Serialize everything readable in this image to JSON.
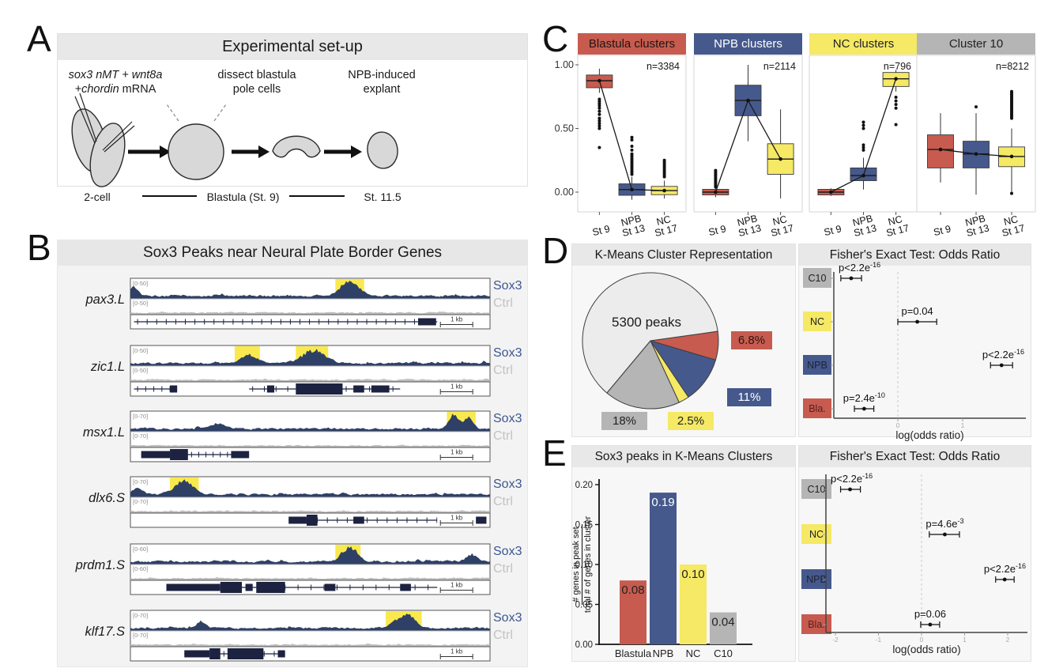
{
  "figure": {
    "panel_labels": [
      "A",
      "B",
      "C",
      "D",
      "E"
    ]
  },
  "colors": {
    "red": "#c75b4f",
    "blue": "#46598c",
    "yellow": "#f5e965",
    "gray": "#b5b5b5",
    "light_slice": "#ececec",
    "header_strip": "#e8e8e8",
    "track_navy": "#2f4066",
    "gene_model": "#1c2240",
    "ctrl_gray": "#bdbdbd",
    "sox3_label": "#3b5793",
    "highlight": "#f9e94e"
  },
  "panel_a": {
    "title": "Experimental set-up",
    "injection_label_line1": "sox3 nMT + wnt8a",
    "injection_label_line2_italic": "+chordin",
    "injection_label_line2_plain": " mRNA",
    "dissect_label_line1": "dissect blastula",
    "dissect_label_line2": "pole cells",
    "explant_label_line1": "NPB-induced",
    "explant_label_line2": "explant",
    "stage_left": "2-cell",
    "stage_mid": "Blastula (St. 9)",
    "stage_right": "St. 11.5"
  },
  "panel_b": {
    "title": "Sox3 Peaks near Neural Plate Border Genes",
    "sox3_label": "Sox3",
    "ctrl_label": "Ctrl",
    "scale_label": "1 kb",
    "tracks": [
      {
        "gene": "pax3.L",
        "range": "[0-50]",
        "seed": 11,
        "highlights": [
          [
            57,
            8
          ]
        ],
        "peaks": [
          [
            61,
            0.8,
            2.6
          ],
          [
            1,
            0.5,
            1.2
          ]
        ],
        "lines": [
          [
            1,
            86
          ]
        ],
        "ticks": [
          [
            2,
            79,
            30
          ]
        ],
        "boxes": [
          [
            80,
            5,
            2
          ]
        ]
      },
      {
        "gene": "zic1.L",
        "range": "[0-50]",
        "seed": 23,
        "highlights": [
          [
            29,
            7
          ],
          [
            46,
            9
          ]
        ],
        "peaks": [
          [
            33,
            0.45,
            2.0
          ],
          [
            51,
            0.7,
            3.0
          ]
        ],
        "lines": [
          [
            1,
            13
          ],
          [
            33,
            75
          ]
        ],
        "ticks": [
          [
            2,
            11,
            5
          ],
          [
            34,
            73,
            13
          ]
        ],
        "boxes": [
          [
            11,
            2,
            2
          ],
          [
            38,
            2,
            2
          ],
          [
            46,
            13,
            3
          ],
          [
            62,
            3,
            2
          ],
          [
            67,
            5,
            2
          ]
        ]
      },
      {
        "gene": "msx1.L",
        "range": "[0-70]",
        "seed": 37,
        "highlights": [
          [
            88,
            8
          ]
        ],
        "peaks": [
          [
            90,
            0.75,
            1.4
          ],
          [
            94,
            0.6,
            1.2
          ],
          [
            24,
            0.3,
            2.0
          ]
        ],
        "lines": [
          [
            3,
            33
          ]
        ],
        "ticks": [
          [
            17,
            27,
            6
          ]
        ],
        "boxes": [
          [
            3,
            8,
            2
          ],
          [
            11,
            5,
            3
          ],
          [
            28,
            5,
            2
          ]
        ]
      },
      {
        "gene": "dlx6.S",
        "range": "[0-70]",
        "seed": 49,
        "highlights": [
          [
            11,
            8
          ]
        ],
        "peaks": [
          [
            15,
            0.75,
            2.4
          ],
          [
            2,
            0.35,
            1.5
          ]
        ],
        "lines": [
          [
            44,
            97
          ]
        ],
        "ticks": [
          [
            52,
            88,
            14
          ]
        ],
        "boxes": [
          [
            44,
            5,
            2
          ],
          [
            49,
            3,
            3
          ],
          [
            62,
            3,
            2
          ],
          [
            96,
            3,
            2
          ]
        ]
      },
      {
        "gene": "prdm1.S",
        "range": "[0-60]",
        "seed": 61,
        "highlights": [
          [
            57,
            7
          ]
        ],
        "peaks": [
          [
            61,
            0.8,
            2.0
          ],
          [
            95,
            0.4,
            1.5
          ]
        ],
        "lines": [
          [
            10,
            92
          ]
        ],
        "ticks": [
          [
            43,
            90,
            14
          ]
        ],
        "boxes": [
          [
            10,
            15,
            2
          ],
          [
            25,
            6,
            3
          ],
          [
            32,
            2,
            2
          ],
          [
            35,
            8,
            3
          ],
          [
            54,
            3,
            2
          ],
          [
            75,
            3,
            2
          ]
        ]
      },
      {
        "gene": "klf17.S",
        "range": "[0-70]",
        "seed": 73,
        "highlights": [
          [
            71,
            10
          ]
        ],
        "peaks": [
          [
            75,
            0.55,
            2.2
          ],
          [
            78,
            0.5,
            1.4
          ],
          [
            20,
            0.35,
            1.2
          ]
        ],
        "lines": [
          [
            15,
            43
          ]
        ],
        "ticks": [
          [
            26,
            40,
            6
          ]
        ],
        "boxes": [
          [
            15,
            7,
            2
          ],
          [
            22,
            3,
            3
          ],
          [
            27,
            10,
            3
          ],
          [
            41,
            2,
            2
          ]
        ]
      }
    ]
  },
  "chart_data": [
    {
      "id": "box_blastula_clusters",
      "type": "box",
      "title": "Blastula clusters",
      "header_color": "#c75b4f",
      "header_text": "#221311",
      "n_label": "n=3384",
      "ylim": [
        -0.15,
        1.09
      ],
      "yticks": [
        {
          "v": 1.0,
          "label": "1.00"
        },
        {
          "v": 0.5,
          "label": "0.50"
        },
        {
          "v": 0.0,
          "label": "0.00"
        }
      ],
      "categories": [
        [
          "St 9"
        ],
        [
          "NPB",
          "St 13"
        ],
        [
          "NC",
          "St 17"
        ]
      ],
      "boxes": [
        {
          "color": "#c75b4f",
          "q1": 0.82,
          "q3": 0.92,
          "med": 0.875,
          "wlo": 0.78,
          "whi": 0.97,
          "outliers": [
            [
              0.5,
              0.58,
              5
            ],
            [
              0.61,
              0.66,
              3
            ],
            [
              0.68,
              0.73,
              4
            ],
            [
              0.35,
              0.35,
              1
            ]
          ]
        },
        {
          "color": "#46598c",
          "q1": -0.025,
          "q3": 0.065,
          "med": 0.02,
          "wlo": -0.06,
          "whi": 0.12,
          "outliers": [
            [
              0.14,
              0.3,
              12
            ],
            [
              0.33,
              0.36,
              2
            ],
            [
              0.41,
              0.43,
              2
            ]
          ]
        },
        {
          "color": "#f5e965",
          "q1": -0.02,
          "q3": 0.045,
          "med": 0.012,
          "wlo": -0.05,
          "whi": 0.09,
          "outliers": [
            [
              0.12,
              0.25,
              10
            ]
          ]
        }
      ]
    },
    {
      "id": "box_npb_clusters",
      "type": "box",
      "title": "NPB clusters",
      "header_color": "#46598c",
      "header_text": "#ffffff",
      "n_label": "n=2114",
      "ylim": [
        -0.15,
        1.09
      ],
      "yticks": [],
      "categories": [
        [
          "St 9"
        ],
        [
          "NPB",
          "St 13"
        ],
        [
          "NC",
          "St 17"
        ]
      ],
      "boxes": [
        {
          "color": "#c75b4f",
          "q1": -0.022,
          "q3": 0.022,
          "med": 0.0,
          "wlo": -0.04,
          "whi": 0.04,
          "outliers": [
            [
              0.04,
              0.17,
              11
            ]
          ]
        },
        {
          "color": "#46598c",
          "q1": 0.6,
          "q3": 0.84,
          "med": 0.72,
          "wlo": 0.4,
          "whi": 1.0,
          "outliers": []
        },
        {
          "color": "#f5e965",
          "q1": 0.14,
          "q3": 0.38,
          "med": 0.26,
          "wlo": -0.05,
          "whi": 0.65,
          "outliers": []
        }
      ]
    },
    {
      "id": "box_nc_clusters",
      "type": "box",
      "title": "NC clusters",
      "header_color": "#f5e965",
      "header_text": "#222222",
      "n_label": "n=796",
      "ylim": [
        -0.15,
        1.09
      ],
      "yticks": [],
      "categories": [
        [
          "St 9"
        ],
        [
          "NPB",
          "St 13"
        ],
        [
          "NC",
          "St 17"
        ]
      ],
      "boxes": [
        {
          "color": "#c75b4f",
          "q1": -0.022,
          "q3": 0.022,
          "med": 0.0,
          "wlo": -0.03,
          "whi": 0.03,
          "outliers": []
        },
        {
          "color": "#46598c",
          "q1": 0.09,
          "q3": 0.19,
          "med": 0.13,
          "wlo": 0.02,
          "whi": 0.27,
          "outliers": [
            [
              0.33,
              0.37,
              3
            ],
            [
              0.5,
              0.55,
              3
            ]
          ]
        },
        {
          "color": "#f5e965",
          "q1": 0.83,
          "q3": 0.94,
          "med": 0.89,
          "wlo": 0.79,
          "whi": 0.96,
          "outliers": [
            [
              0.53,
              0.53,
              1
            ],
            [
              0.66,
              0.745,
              4
            ]
          ]
        }
      ]
    },
    {
      "id": "box_cluster10",
      "type": "box",
      "title": "Cluster 10",
      "header_color": "#b5b5b5",
      "header_text": "#222222",
      "n_label": "n=8212",
      "ylim": [
        -0.15,
        1.09
      ],
      "yticks": [],
      "categories": [
        [
          "St 9"
        ],
        [
          "NPB",
          "St 13"
        ],
        [
          "NC",
          "St 17"
        ]
      ],
      "boxes": [
        {
          "color": "#c75b4f",
          "q1": 0.19,
          "q3": 0.45,
          "med": 0.335,
          "wlo": 0.075,
          "whi": 0.62,
          "outliers": []
        },
        {
          "color": "#46598c",
          "q1": 0.19,
          "q3": 0.4,
          "med": 0.3,
          "wlo": -0.02,
          "whi": 0.62,
          "outliers": [
            [
              0.67,
              0.67,
              1
            ]
          ]
        },
        {
          "color": "#f5e965",
          "q1": 0.2,
          "q3": 0.355,
          "med": 0.28,
          "wlo": 0.0,
          "whi": 0.5,
          "outliers": [
            [
              0.58,
              0.79,
              18
            ],
            [
              -0.01,
              -0.01,
              1
            ]
          ]
        }
      ]
    },
    {
      "id": "pie_kmeans",
      "type": "pie",
      "title": "K-Means Cluster Representation",
      "center_label": "5300 peaks",
      "start_angle": -8,
      "slices": [
        {
          "label": "6.8%",
          "value": 6.8,
          "color": "#c75b4f",
          "text_color": "#2a1512"
        },
        {
          "label": "11%",
          "value": 11,
          "color": "#46598c",
          "text_color": "#ffffff"
        },
        {
          "label": "2.5%",
          "value": 2.5,
          "color": "#f5e965",
          "text_color": "#222222"
        },
        {
          "label": "18%",
          "value": 18,
          "color": "#b5b5b5",
          "text_color": "#222222"
        },
        {
          "label": "",
          "value": 61.7,
          "color": "#ececec",
          "text_color": "#222222"
        }
      ]
    },
    {
      "id": "fisher_kmeans",
      "type": "dot",
      "title": "Fisher's Exact Test: Odds Ratio",
      "xlabel": "log(odds ratio)",
      "xticks": [
        {
          "v": 0,
          "label": "0"
        },
        {
          "v": 1,
          "label": "1"
        }
      ],
      "rows": [
        {
          "label": "C10",
          "color": "#b5b5b5",
          "text_color": "#222222",
          "or": -0.72,
          "lo": -0.88,
          "hi": -0.56,
          "p_base": "p<2.2e",
          "p_exp": "-16",
          "p_align": "axis"
        },
        {
          "label": "NC",
          "color": "#f5e965",
          "text_color": "#222222",
          "or": 0.3,
          "lo": 0.0,
          "hi": 0.6,
          "p_base": "p=0.04",
          "p_exp": "",
          "p_align": "center"
        },
        {
          "label": "NPB",
          "color": "#46598c",
          "text_color": "#1d2334",
          "or": 1.6,
          "lo": 1.43,
          "hi": 1.77,
          "p_base": "p<2.2e",
          "p_exp": "-16",
          "p_align": "end"
        },
        {
          "label": "Bla.",
          "color": "#c75b4f",
          "text_color": "#55201a",
          "or": -0.52,
          "lo": -0.67,
          "hi": -0.37,
          "p_base": "p=2.4e",
          "p_exp": "-10",
          "p_align": "center"
        }
      ]
    },
    {
      "id": "bar_sox3_peaks",
      "type": "bar",
      "title": "Sox3 peaks in K-Means Clusters",
      "ylabel_numerator": "# genes in peak set",
      "ylabel_denominator": "total # of genes in cluster",
      "categories": [
        "Blastula",
        "NPB",
        "NC",
        "C10"
      ],
      "values": [
        0.08,
        0.19,
        0.1,
        0.04
      ],
      "value_labels": [
        "0.08",
        "0.19",
        "0.10",
        "0.04"
      ],
      "value_label_colors": [
        "#222222",
        "#ffffff",
        "#222222",
        "#222222"
      ],
      "colors": [
        "#c75b4f",
        "#46598c",
        "#f5e965",
        "#b5b5b5"
      ],
      "ylim": [
        0,
        0.2
      ],
      "yticks": [
        {
          "v": 0.0,
          "label": "0.00"
        },
        {
          "v": 0.05,
          "label": "0.05"
        },
        {
          "v": 0.1,
          "label": "0.10"
        },
        {
          "v": 0.15,
          "label": "0.15"
        },
        {
          "v": 0.2,
          "label": "0.20"
        }
      ]
    },
    {
      "id": "fisher_sox3",
      "type": "dot",
      "title": "Fisher's Exact Test: Odds Ratio",
      "xlabel": "log(odds ratio)",
      "xticks": [
        {
          "v": -2,
          "label": "-2"
        },
        {
          "v": -1,
          "label": "-1"
        },
        {
          "v": 0,
          "label": "0"
        },
        {
          "v": 1,
          "label": "1"
        },
        {
          "v": 2,
          "label": "2"
        }
      ],
      "rows": [
        {
          "label": "C10",
          "color": "#b5b5b5",
          "text_color": "#222222",
          "or": -1.66,
          "lo": -1.88,
          "hi": -1.42,
          "p_base": "p<2.2e",
          "p_exp": "-16",
          "p_align": "axis"
        },
        {
          "label": "NC",
          "color": "#f5e965",
          "text_color": "#222222",
          "or": 0.54,
          "lo": 0.18,
          "hi": 0.88,
          "p_base": "p=4.6e",
          "p_exp": "-3",
          "p_align": "center"
        },
        {
          "label": "NPB",
          "color": "#46598c",
          "text_color": "#1d2334",
          "or": 1.93,
          "lo": 1.72,
          "hi": 2.15,
          "p_base": "p<2.2e",
          "p_exp": "-16",
          "p_align": "end"
        },
        {
          "label": "Bla.",
          "color": "#c75b4f",
          "text_color": "#55201a",
          "or": 0.2,
          "lo": -0.02,
          "hi": 0.42,
          "p_base": "p=0.06",
          "p_exp": "",
          "p_align": "center"
        }
      ]
    }
  ]
}
